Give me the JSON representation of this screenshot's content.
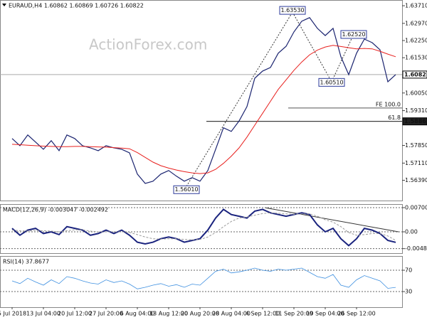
{
  "chart_data": [
    {
      "type": "line",
      "title": "EURAUD,H4  1.60862 1.60869 1.60726 1.60822",
      "watermark": "ActionForex.com",
      "ylim": [
        1.5554,
        1.6395
      ],
      "yticks": [
        {
          "value": 1.6371,
          "label": "1.63710"
        },
        {
          "value": 1.6297,
          "label": "1.62970"
        },
        {
          "value": 1.6225,
          "label": "1.62250"
        },
        {
          "value": 1.6153,
          "label": "1.61530"
        },
        {
          "value": 1.6005,
          "label": "1.60050"
        },
        {
          "value": 1.5931,
          "label": "1.59310"
        },
        {
          "value": 1.5785,
          "label": "1.57850"
        },
        {
          "value": 1.5711,
          "label": "1.57110"
        },
        {
          "value": 1.5639,
          "label": "1.56390"
        }
      ],
      "grid": false,
      "series": [
        {
          "color": "#1b2470",
          "values": [
            1.5814,
            1.5784,
            1.5829,
            1.5799,
            1.5769,
            1.5805,
            1.5763,
            1.5829,
            1.5814,
            1.5784,
            1.5775,
            1.5763,
            1.5784,
            1.5775,
            1.5769,
            1.5754,
            1.5665,
            1.5626,
            1.5635,
            1.5665,
            1.568,
            1.5656,
            1.5635,
            1.565,
            1.5635,
            1.568,
            1.5769,
            1.5859,
            1.5844,
            1.5888,
            1.5948,
            1.6067,
            1.6097,
            1.6112,
            1.6172,
            1.6201,
            1.6261,
            1.6306,
            1.6321,
            1.6276,
            1.6246,
            1.6276,
            1.6157,
            1.6082,
            1.6172,
            1.6231,
            1.6216,
            1.6186,
            1.6052,
            1.60822
          ]
        },
        {
          "color": "#e8201e",
          "values": [
            1.579,
            1.5788,
            1.5786,
            1.5784,
            1.5782,
            1.5781,
            1.578,
            1.578,
            1.5781,
            1.5781,
            1.578,
            1.5779,
            1.5778,
            1.5776,
            1.5774,
            1.5771,
            1.5755,
            1.5735,
            1.5715,
            1.57,
            1.569,
            1.5682,
            1.5675,
            1.567,
            1.5667,
            1.567,
            1.5685,
            1.571,
            1.574,
            1.5775,
            1.582,
            1.587,
            1.592,
            1.597,
            1.602,
            1.606,
            1.61,
            1.6135,
            1.6165,
            1.6185,
            1.6198,
            1.6205,
            1.62,
            1.6195,
            1.619,
            1.6192,
            1.619,
            1.618,
            1.6168,
            1.6157
          ]
        }
      ],
      "levels": [
        {
          "value": 1.60822,
          "label": "1.60822"
        },
        {
          "value": 1.5886,
          "label": "1.58860"
        }
      ],
      "fib_levels": [
        {
          "value": 1.5942,
          "label": "FE 100.0"
        },
        {
          "value": 1.5886,
          "label": "61.8"
        }
      ],
      "annotations": [
        {
          "text": "1.63530",
          "value": 1.6353
        },
        {
          "text": "1.62520",
          "value": 1.6252
        },
        {
          "text": "1.60510",
          "value": 1.6051
        },
        {
          "text": "1.56010",
          "value": 1.5601
        }
      ]
    },
    {
      "type": "line",
      "title": "MACD(12,26,9) -0.003047 -0.002492",
      "ylim": [
        -0.00618,
        0.00803
      ],
      "yticks": [
        0.007003,
        {
          "value": 0,
          "label": "0.00"
        },
        -0.004873
      ],
      "grid": true,
      "series": [
        {
          "color": "#1a237e",
          "values": [
            0.001,
            -0.001,
            0.0005,
            0.001,
            -0.0005,
            0.0,
            -0.0008,
            0.0015,
            0.001,
            0.0005,
            -0.001,
            -0.0005,
            0.0005,
            -0.0005,
            0.0005,
            -0.001,
            -0.003,
            -0.0035,
            -0.003,
            -0.002,
            -0.0015,
            -0.002,
            -0.003,
            -0.0025,
            -0.002,
            0.0005,
            0.004,
            0.0065,
            0.005,
            0.0045,
            0.004,
            0.006,
            0.0065,
            0.0055,
            0.005,
            0.0045,
            0.005,
            0.0055,
            0.005,
            0.002,
            0.0,
            0.001,
            -0.002,
            -0.004,
            -0.002,
            0.001,
            0.0005,
            -0.0005,
            -0.0025,
            -0.003047
          ]
        },
        {
          "color": "#9a9a9a",
          "values": [
            0.0005,
            0.0003,
            0.0002,
            0.0004,
            0.0003,
            0.0002,
            0.0,
            0.0003,
            0.0006,
            0.0006,
            0.0002,
            0.0,
            0.0,
            0.0,
            0.0,
            -0.0002,
            -0.0008,
            -0.0015,
            -0.002,
            -0.0021,
            -0.002,
            -0.002,
            -0.0022,
            -0.0023,
            -0.0022,
            -0.0015,
            -0.0002,
            0.0015,
            0.003,
            0.004,
            0.0043,
            0.0048,
            0.0053,
            0.0055,
            0.0054,
            0.0052,
            0.0051,
            0.0052,
            0.0052,
            0.0045,
            0.0035,
            0.0028,
            0.0015,
            -0.0002,
            -0.001,
            -0.0008,
            -0.0005,
            -0.0005,
            -0.0012,
            -0.002492
          ]
        }
      ]
    },
    {
      "type": "line",
      "title": "RSI(14) 37.8677",
      "ylim": [
        0.7,
        96.7
      ],
      "yticks": [
        70,
        30
      ],
      "grid": true,
      "series": [
        {
          "color": "#3d8fe0",
          "values": [
            50,
            45,
            55,
            48,
            42,
            52,
            45,
            58,
            55,
            50,
            46,
            44,
            52,
            47,
            50,
            44,
            35,
            38,
            42,
            45,
            40,
            43,
            38,
            44,
            42,
            55,
            68,
            72,
            65,
            67,
            70,
            74,
            70,
            68,
            72,
            70,
            72,
            74,
            66,
            58,
            55,
            62,
            42,
            38,
            52,
            60,
            55,
            50,
            36,
            37.8677
          ]
        }
      ],
      "categories": [
        "5 Jul 2018",
        null,
        null,
        null,
        "13 Jul 04:00",
        null,
        null,
        null,
        "20 Jul 12:00",
        null,
        null,
        null,
        "27 Jul 20:00",
        null,
        null,
        null,
        "6 Aug 04:00",
        null,
        null,
        null,
        "13 Aug 12:00",
        null,
        null,
        null,
        "20 Aug 20:00",
        null,
        null,
        null,
        "28 Aug 04:00",
        null,
        null,
        null,
        "4 Sep 12:00",
        null,
        null,
        null,
        "11 Sep 20:00",
        null,
        null,
        null,
        "19 Sep 04:00",
        null,
        null,
        null,
        "26 Sep 12:00",
        null,
        null,
        null,
        null,
        null
      ]
    }
  ]
}
